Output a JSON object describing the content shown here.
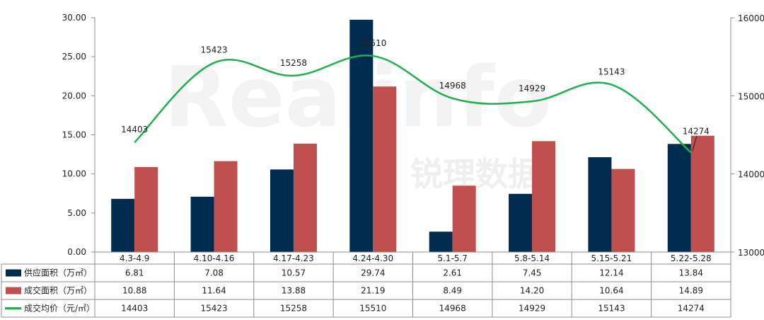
{
  "watermark": {
    "latin": "Realinfo",
    "chinese": "锐理数据"
  },
  "chart_data": {
    "type": "bar",
    "categories": [
      "4.3-4.9",
      "4.10-4.16",
      "4.17-4.23",
      "4.24-4.30",
      "5.1-5.7",
      "5.8-5.14",
      "5.15-5.21",
      "5.22-5.28"
    ],
    "series": [
      {
        "name": "供应面积（万㎡）",
        "type": "bar",
        "axis": "left",
        "color": "#002C50",
        "values": [
          6.81,
          7.08,
          10.57,
          29.74,
          2.61,
          7.45,
          12.14,
          13.84
        ]
      },
      {
        "name": "成交面积（万㎡）",
        "type": "bar",
        "axis": "left",
        "color": "#C0504D",
        "values": [
          10.88,
          11.64,
          13.88,
          21.19,
          8.49,
          14.2,
          10.64,
          14.89
        ]
      },
      {
        "name": "成交均价（元/㎡）",
        "type": "line",
        "axis": "right",
        "color": "#1DB14B",
        "values": [
          14403,
          15423,
          15258,
          15510,
          14968,
          14929,
          15143,
          14274
        ]
      }
    ],
    "table_values": [
      [
        "6.81",
        "7.08",
        "10.57",
        "29.74",
        "2.61",
        "7.45",
        "12.14",
        "13.84"
      ],
      [
        "10.88",
        "11.64",
        "13.88",
        "21.19",
        "8.49",
        "14.20",
        "10.64",
        "14.89"
      ],
      [
        "14403",
        "15423",
        "15258",
        "15510",
        "14968",
        "14929",
        "15143",
        "14274"
      ]
    ],
    "y_left": {
      "min": 0,
      "max": 30,
      "step": 5,
      "ticks": [
        "0.00",
        "5.00",
        "10.00",
        "15.00",
        "20.00",
        "25.00",
        "30.00"
      ]
    },
    "y_right": {
      "min": 13000,
      "max": 16000,
      "step": 1000,
      "ticks": [
        "13000",
        "14000",
        "15000",
        "16000"
      ]
    },
    "grid": false,
    "legend": "data-table-bottom"
  }
}
